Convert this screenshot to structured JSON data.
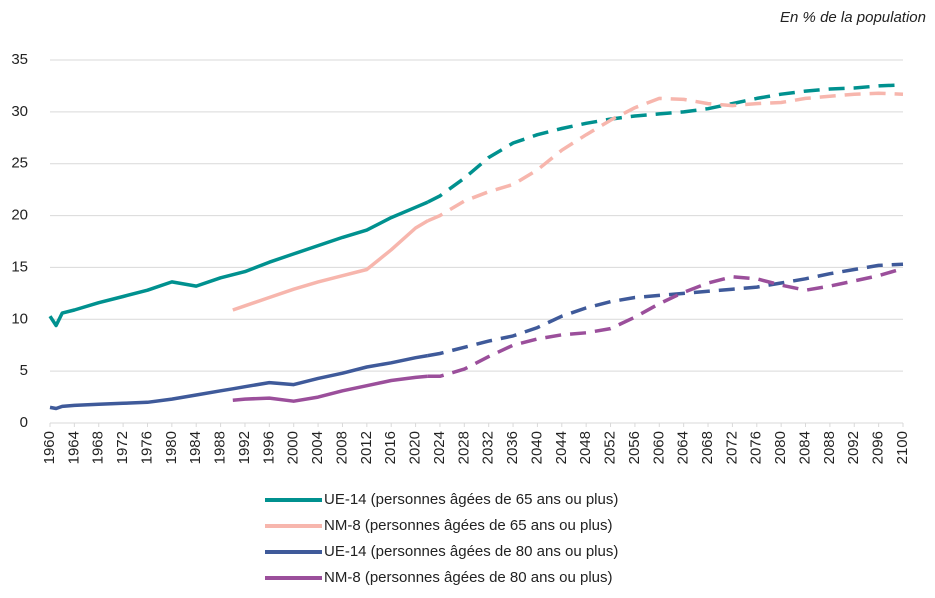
{
  "chart_data": {
    "type": "line",
    "annotation": "En % de la population",
    "x": [
      1960,
      1961,
      1962,
      1964,
      1968,
      1972,
      1976,
      1980,
      1984,
      1988,
      1990,
      1992,
      1996,
      2000,
      2004,
      2008,
      2012,
      2016,
      2020,
      2022,
      2024,
      2028,
      2032,
      2036,
      2040,
      2044,
      2048,
      2052,
      2056,
      2060,
      2064,
      2068,
      2072,
      2076,
      2080,
      2084,
      2088,
      2092,
      2096,
      2100
    ],
    "dashed_from": 2022,
    "series": [
      {
        "name": "UE-14 (personnes âgées de 65 ans ou plus)",
        "color": "#00918f",
        "values": [
          10.3,
          9.4,
          10.6,
          10.9,
          11.6,
          12.2,
          12.8,
          13.6,
          13.2,
          14.0,
          14.3,
          14.6,
          15.5,
          16.3,
          17.1,
          17.9,
          18.6,
          19.8,
          20.8,
          21.3,
          21.9,
          23.6,
          25.6,
          27.0,
          27.8,
          28.4,
          28.9,
          29.3,
          29.6,
          29.8,
          30.0,
          30.3,
          30.8,
          31.3,
          31.7,
          32.0,
          32.2,
          32.3,
          32.5,
          32.6
        ]
      },
      {
        "name": "NM-8 (personnes âgées de 65 ans ou plus)",
        "color": "#f7b6ad",
        "values": [
          null,
          null,
          null,
          null,
          null,
          null,
          null,
          null,
          null,
          null,
          10.9,
          11.3,
          12.1,
          12.9,
          13.6,
          14.2,
          14.8,
          16.7,
          18.8,
          19.5,
          20.0,
          21.4,
          22.3,
          23.0,
          24.4,
          26.3,
          27.8,
          29.2,
          30.4,
          31.3,
          31.2,
          30.8,
          30.6,
          30.8,
          30.9,
          31.3,
          31.5,
          31.7,
          31.8,
          31.7
        ]
      },
      {
        "name": "UE-14 (personnes âgées de 80 ans ou plus)",
        "color": "#3f5a9a",
        "values": [
          1.5,
          1.4,
          1.6,
          1.7,
          1.8,
          1.9,
          2.0,
          2.3,
          2.7,
          3.1,
          3.3,
          3.5,
          3.9,
          3.7,
          4.3,
          4.8,
          5.4,
          5.8,
          6.3,
          6.5,
          6.7,
          7.3,
          7.9,
          8.4,
          9.2,
          10.3,
          11.1,
          11.7,
          12.1,
          12.3,
          12.5,
          12.7,
          12.9,
          13.1,
          13.5,
          13.9,
          14.4,
          14.8,
          15.2,
          15.3
        ]
      },
      {
        "name": "NM-8 (personnes âgées de 80 ans ou plus)",
        "color": "#9b4f9b",
        "values": [
          null,
          null,
          null,
          null,
          null,
          null,
          null,
          null,
          null,
          null,
          2.2,
          2.3,
          2.4,
          2.1,
          2.5,
          3.1,
          3.6,
          4.1,
          4.4,
          4.5,
          4.5,
          5.2,
          6.4,
          7.5,
          8.1,
          8.5,
          8.7,
          9.1,
          10.2,
          11.5,
          12.6,
          13.5,
          14.1,
          13.9,
          13.3,
          12.8,
          13.2,
          13.7,
          14.2,
          14.9
        ]
      }
    ],
    "xlim": [
      1960,
      2100
    ],
    "xticks": [
      1960,
      1964,
      1968,
      1972,
      1976,
      1980,
      1984,
      1988,
      1992,
      1996,
      2000,
      2004,
      2008,
      2012,
      2016,
      2020,
      2024,
      2028,
      2032,
      2036,
      2040,
      2044,
      2048,
      2052,
      2056,
      2060,
      2064,
      2068,
      2072,
      2076,
      2080,
      2084,
      2088,
      2092,
      2096,
      2100
    ],
    "ylim": [
      0,
      35
    ],
    "yticks": [
      0,
      5,
      10,
      15,
      20,
      25,
      30,
      35
    ],
    "grid": true
  }
}
